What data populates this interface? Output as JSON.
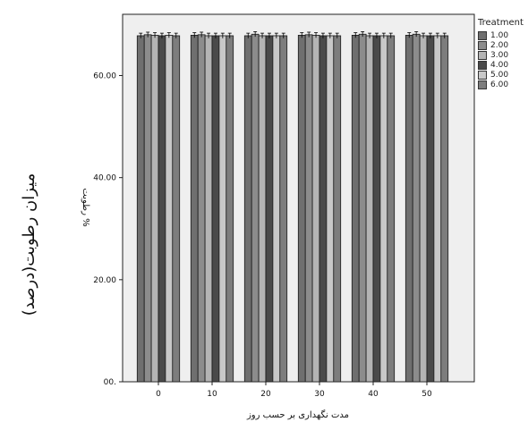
{
  "outer_ylabel": "میزان رطوبت(درصد)",
  "chart_data": {
    "type": "bar",
    "categories": [
      "0",
      "10",
      "20",
      "30",
      "40",
      "50"
    ],
    "yticks": [
      "00.",
      "20.00",
      "40.00",
      "60.00"
    ],
    "ylim": [
      0,
      72
    ],
    "ylabel": "% رطوبت",
    "xlabel": "مدت نگهداری بر حسب روز",
    "legend_title": "Treatment",
    "legend_position": "right",
    "grid": false,
    "series": [
      {
        "name": "1.00",
        "color": "#6f6f6f",
        "values": [
          67.8,
          67.9,
          67.8,
          67.9,
          67.9,
          67.9
        ]
      },
      {
        "name": "2.00",
        "color": "#8c8c8c",
        "values": [
          68.0,
          68.0,
          68.1,
          68.0,
          68.1,
          68.1
        ]
      },
      {
        "name": "3.00",
        "color": "#b4b4b4",
        "values": [
          67.9,
          67.8,
          67.8,
          67.9,
          67.8,
          67.8
        ]
      },
      {
        "name": "4.00",
        "color": "#4a4a4a",
        "values": [
          67.8,
          67.8,
          67.8,
          67.8,
          67.8,
          67.8
        ]
      },
      {
        "name": "5.00",
        "color": "#c8c8c8",
        "values": [
          67.9,
          67.8,
          67.8,
          67.8,
          67.8,
          67.8
        ]
      },
      {
        "name": "6.00",
        "color": "#7d7d7d",
        "values": [
          67.8,
          67.8,
          67.8,
          67.8,
          67.8,
          67.8
        ]
      }
    ]
  }
}
